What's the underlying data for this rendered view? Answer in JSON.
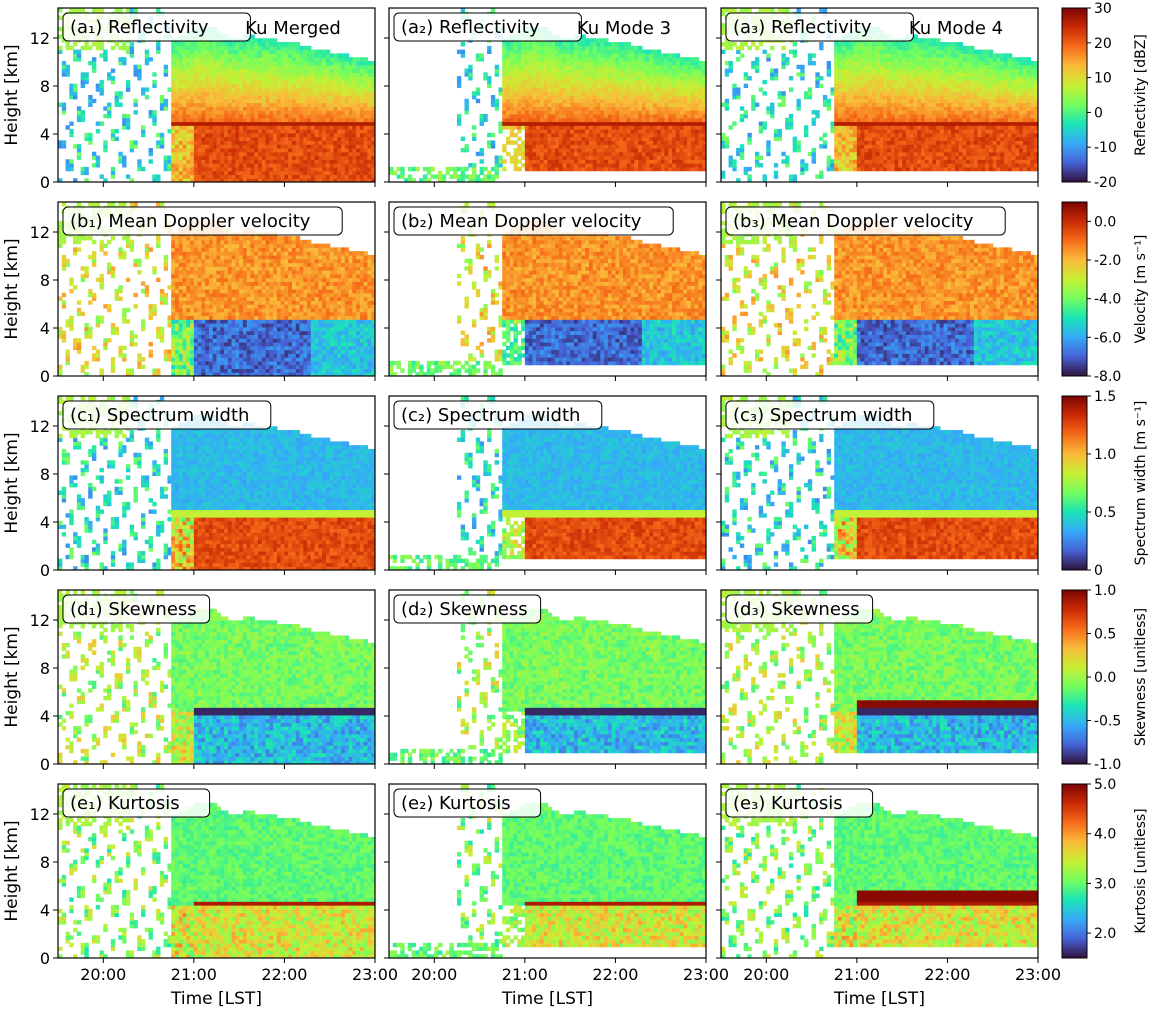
{
  "chart_data": {
    "type": "heatmap",
    "layout": {
      "rows": 5,
      "cols": 3
    },
    "x_axis": {
      "label": "Time [LST]",
      "range": [
        "19:30",
        "23:00"
      ],
      "ticks": [
        "20:00",
        "21:00",
        "22:00",
        "23:00"
      ]
    },
    "y_axis": {
      "label": "Height [km]",
      "range": [
        0,
        14.5
      ],
      "ticks": [
        0,
        4,
        8,
        12
      ]
    },
    "columns": [
      {
        "mode": "Ku Merged"
      },
      {
        "mode": "Ku Mode 3"
      },
      {
        "mode": "Ku Mode 4"
      }
    ],
    "rows": [
      {
        "variable": "Reflectivity",
        "letter": "a",
        "colorbar": {
          "label": "Reflectivity [dBZ]",
          "range": [
            -20,
            30
          ],
          "ticks": [
            "-20",
            "-10",
            "0",
            "10",
            "20",
            "30"
          ]
        },
        "panels": [
          {
            "label": "(a₁) Reflectivity",
            "title": "Ku Merged"
          },
          {
            "label": "(a₂) Reflectivity",
            "title": "Ku Mode 3"
          },
          {
            "label": "(a₃) Reflectivity",
            "title": "Ku Mode 4"
          }
        ]
      },
      {
        "variable": "Mean Doppler velocity",
        "letter": "b",
        "colorbar": {
          "label": "Velocity [m s⁻¹]",
          "range": [
            -8,
            1
          ],
          "ticks": [
            "-8.0",
            "-6.0",
            "-4.0",
            "-2.0",
            "0.0"
          ]
        },
        "panels": [
          {
            "label": "(b₁) Mean Doppler velocity"
          },
          {
            "label": "(b₂) Mean Doppler velocity"
          },
          {
            "label": "(b₃) Mean Doppler velocity"
          }
        ]
      },
      {
        "variable": "Spectrum width",
        "letter": "c",
        "colorbar": {
          "label": "Spectrum width [m s⁻¹]",
          "range": [
            0,
            1.5
          ],
          "ticks": [
            "0",
            "0.5",
            "1.0",
            "1.5"
          ]
        },
        "panels": [
          {
            "label": "(c₁) Spectrum width"
          },
          {
            "label": "(c₂) Spectrum width"
          },
          {
            "label": "(c₃) Spectrum width"
          }
        ]
      },
      {
        "variable": "Skewness",
        "letter": "d",
        "colorbar": {
          "label": "Skewness [unitless]",
          "range": [
            -1,
            1
          ],
          "ticks": [
            "-1.0",
            "-0.5",
            "0.0",
            "0.5",
            "1.0"
          ]
        },
        "panels": [
          {
            "label": "(d₁) Skewness"
          },
          {
            "label": "(d₂) Skewness"
          },
          {
            "label": "(d₃) Skewness"
          }
        ]
      },
      {
        "variable": "Kurtosis",
        "letter": "e",
        "colorbar": {
          "label": "Kurtosis [unitless]",
          "range": [
            1.5,
            5
          ],
          "ticks": [
            "2.0",
            "3.0",
            "4.0",
            "5.0"
          ]
        },
        "panels": [
          {
            "label": "(e₁) Kurtosis"
          },
          {
            "label": "(e₂) Kurtosis"
          },
          {
            "label": "(e₃) Kurtosis"
          }
        ]
      }
    ],
    "colormap": [
      "#30123b",
      "#4662d7",
      "#36aaf9",
      "#1ae4b6",
      "#72fe5e",
      "#c8ef34",
      "#faba39",
      "#f66b19",
      "#ca2a04",
      "#7a0403"
    ]
  }
}
